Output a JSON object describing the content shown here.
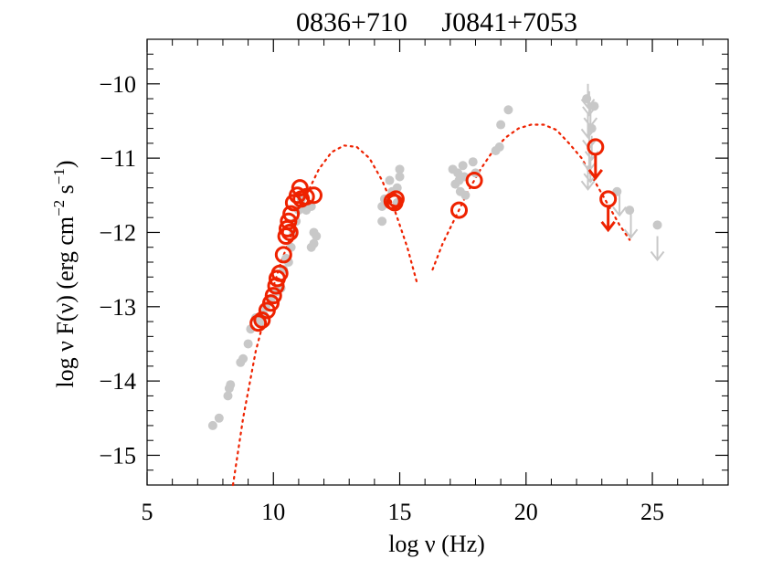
{
  "chart_data": {
    "type": "scatter",
    "title": "0836+710     J0841+7053",
    "xlabel": "log ν (Hz)",
    "ylabel_parts": [
      "log ν F(ν) (erg cm",
      "−2",
      " s",
      "−1",
      ")"
    ],
    "xlim": [
      5,
      28
    ],
    "ylim": [
      -15.4,
      -9.4
    ],
    "xticks": [
      5,
      10,
      15,
      20,
      25
    ],
    "xtick_labels": [
      "5",
      "10",
      "15",
      "20",
      "25"
    ],
    "yticks": [
      -10,
      -11,
      -12,
      -13,
      -14,
      -15
    ],
    "ytick_labels": [
      "−10",
      "−11",
      "−12",
      "−13",
      "−14",
      "−15"
    ],
    "colors": {
      "archival": "#c8c8c8",
      "highlight": "#ee2200",
      "axis": "#000000"
    },
    "series": [
      {
        "name": "archival-points",
        "marker": "filled-circle",
        "points": [
          [
            7.6,
            -14.6
          ],
          [
            7.85,
            -14.5
          ],
          [
            8.2,
            -14.2
          ],
          [
            8.25,
            -14.1
          ],
          [
            8.3,
            -14.05
          ],
          [
            8.7,
            -13.75
          ],
          [
            8.8,
            -13.7
          ],
          [
            9.0,
            -13.5
          ],
          [
            9.1,
            -13.3
          ],
          [
            9.3,
            -13.15
          ],
          [
            9.5,
            -13.2
          ],
          [
            9.6,
            -13.1
          ],
          [
            9.7,
            -13.0
          ],
          [
            9.9,
            -12.9
          ],
          [
            10.1,
            -12.8
          ],
          [
            10.3,
            -12.75
          ],
          [
            10.4,
            -12.5
          ],
          [
            10.5,
            -12.35
          ],
          [
            10.6,
            -12.4
          ],
          [
            10.7,
            -12.2
          ],
          [
            10.8,
            -12.0
          ],
          [
            10.9,
            -11.85
          ],
          [
            11.0,
            -11.7
          ],
          [
            11.1,
            -11.55
          ],
          [
            11.3,
            -11.7
          ],
          [
            11.5,
            -11.65
          ],
          [
            11.6,
            -12.0
          ],
          [
            11.7,
            -12.05
          ],
          [
            11.6,
            -12.15
          ],
          [
            11.5,
            -12.2
          ],
          [
            14.3,
            -11.65
          ],
          [
            14.4,
            -11.55
          ],
          [
            14.3,
            -11.85
          ],
          [
            14.6,
            -11.3
          ],
          [
            14.9,
            -11.4
          ],
          [
            15.0,
            -11.15
          ],
          [
            15.0,
            -11.25
          ],
          [
            14.9,
            -11.6
          ],
          [
            14.7,
            -11.45
          ],
          [
            17.1,
            -11.15
          ],
          [
            17.2,
            -11.35
          ],
          [
            17.3,
            -11.2
          ],
          [
            17.35,
            -11.3
          ],
          [
            17.4,
            -11.45
          ],
          [
            17.5,
            -11.1
          ],
          [
            17.55,
            -11.25
          ],
          [
            17.6,
            -11.5
          ],
          [
            17.9,
            -11.05
          ],
          [
            18.0,
            -11.2
          ],
          [
            18.8,
            -10.9
          ],
          [
            18.95,
            -10.85
          ],
          [
            19.0,
            -10.55
          ],
          [
            19.3,
            -10.35
          ],
          [
            22.4,
            -10.2
          ],
          [
            22.6,
            -10.6
          ],
          [
            22.7,
            -10.3
          ],
          [
            23.6,
            -11.45
          ],
          [
            24.1,
            -11.7
          ],
          [
            25.2,
            -11.9
          ]
        ]
      },
      {
        "name": "archival-upper-limits",
        "marker": "down-arrow",
        "points": [
          [
            22.45,
            -10.0
          ],
          [
            22.5,
            -10.1
          ],
          [
            22.55,
            -10.25
          ],
          [
            22.45,
            -10.4
          ],
          [
            22.5,
            -10.55
          ],
          [
            22.6,
            -10.7
          ],
          [
            22.5,
            -10.85
          ],
          [
            22.55,
            -11.0
          ],
          [
            22.45,
            -11.1
          ],
          [
            23.7,
            -11.45
          ],
          [
            24.15,
            -11.75
          ],
          [
            25.2,
            -12.05
          ]
        ]
      },
      {
        "name": "red-circles",
        "marker": "open-circle",
        "points": [
          [
            9.4,
            -13.22
          ],
          [
            9.55,
            -13.18
          ],
          [
            9.75,
            -13.05
          ],
          [
            9.9,
            -12.95
          ],
          [
            10.0,
            -12.85
          ],
          [
            10.1,
            -12.72
          ],
          [
            10.15,
            -12.62
          ],
          [
            10.25,
            -12.55
          ],
          [
            10.4,
            -12.3
          ],
          [
            10.5,
            -12.05
          ],
          [
            10.55,
            -11.95
          ],
          [
            10.6,
            -11.85
          ],
          [
            10.65,
            -12.0
          ],
          [
            10.7,
            -11.75
          ],
          [
            10.8,
            -11.6
          ],
          [
            10.95,
            -11.5
          ],
          [
            11.05,
            -11.4
          ],
          [
            11.1,
            -11.55
          ],
          [
            11.3,
            -11.52
          ],
          [
            11.6,
            -11.5
          ],
          [
            14.7,
            -11.58
          ],
          [
            14.8,
            -11.6
          ],
          [
            14.85,
            -11.55
          ],
          [
            17.35,
            -11.7
          ],
          [
            17.95,
            -11.3
          ],
          [
            22.75,
            -10.85
          ],
          [
            23.25,
            -11.55
          ]
        ]
      },
      {
        "name": "red-upper-limits",
        "marker": "down-arrow",
        "points": [
          [
            22.75,
            -10.85
          ],
          [
            23.25,
            -11.55
          ]
        ]
      },
      {
        "name": "synchrotron-fit",
        "marker": "dotted-line",
        "points": [
          [
            8.4,
            -15.4
          ],
          [
            8.8,
            -14.5
          ],
          [
            9.3,
            -13.6
          ],
          [
            9.8,
            -12.95
          ],
          [
            10.3,
            -12.4
          ],
          [
            10.8,
            -11.95
          ],
          [
            11.3,
            -11.5
          ],
          [
            11.8,
            -11.15
          ],
          [
            12.3,
            -10.92
          ],
          [
            12.8,
            -10.83
          ],
          [
            13.3,
            -10.85
          ],
          [
            13.8,
            -11.0
          ],
          [
            14.3,
            -11.3
          ],
          [
            14.8,
            -11.7
          ],
          [
            15.3,
            -12.2
          ],
          [
            15.7,
            -12.7
          ]
        ]
      },
      {
        "name": "inverse-compton-fit",
        "marker": "dotted-line",
        "points": [
          [
            16.3,
            -12.5
          ],
          [
            16.7,
            -12.15
          ],
          [
            17.2,
            -11.8
          ],
          [
            17.7,
            -11.45
          ],
          [
            18.2,
            -11.15
          ],
          [
            18.7,
            -10.9
          ],
          [
            19.2,
            -10.72
          ],
          [
            19.7,
            -10.6
          ],
          [
            20.2,
            -10.55
          ],
          [
            20.7,
            -10.55
          ],
          [
            21.2,
            -10.62
          ],
          [
            21.7,
            -10.8
          ],
          [
            22.2,
            -11.0
          ],
          [
            22.7,
            -11.3
          ],
          [
            23.2,
            -11.6
          ],
          [
            23.7,
            -11.9
          ],
          [
            24.1,
            -12.1
          ]
        ]
      }
    ]
  }
}
